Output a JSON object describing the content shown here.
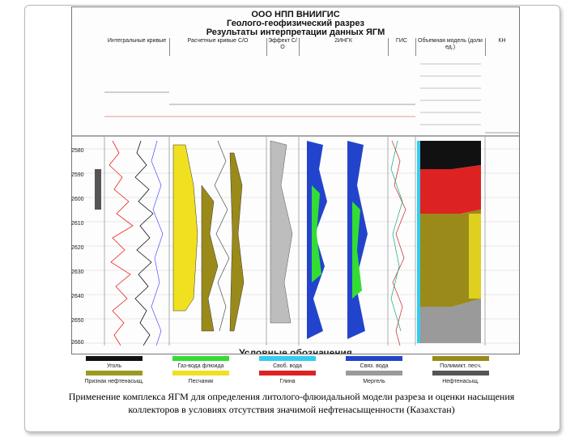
{
  "header": {
    "org": "ООО НПП ВНИИГИС",
    "title": "Геолого-геофизический разрез",
    "subtitle": "Результаты интерпретации данных ЯГМ"
  },
  "columns": {
    "integral": "Интегральные кривые",
    "calculated": "Расчетные кривые С/О",
    "effect": "Эффект С/О",
    "ingk": "2ИНГК",
    "gis": "ГИС",
    "volume": "Объемная модель (доли ед.)",
    "kn": "КН"
  },
  "depths": [
    "2580",
    "2590",
    "2600",
    "2610",
    "2620",
    "2630",
    "2640",
    "2650",
    "2660"
  ],
  "legend": {
    "title": "Условные обозначения",
    "items": [
      {
        "label": "Уголь",
        "color": "#111111"
      },
      {
        "label": "Газ-вода флюида",
        "color": "#33dd33"
      },
      {
        "label": "Своб. вода",
        "color": "#33ccee"
      },
      {
        "label": "Связ. вода",
        "color": "#2244cc"
      },
      {
        "label": "Полимикт. песч.",
        "color": "#9a8a1a"
      },
      {
        "label": "Признак нефтенасыщ.",
        "color": "#9a9a22"
      },
      {
        "label": "Песчаник",
        "color": "#f0e020"
      },
      {
        "label": "Глина",
        "color": "#dd2222"
      },
      {
        "label": "Мергель",
        "color": "#9a9a9a"
      },
      {
        "label": "Нефтенасыщ.",
        "color": "#555555"
      }
    ]
  },
  "caption": {
    "line1": "Применение комплекса ЯГМ для определения литолого-флюидальной модели разреза и оценки насыщения",
    "line2": "коллекторов в условиях отсутствия значимой нефтенасыщенности (Казахстан)"
  },
  "colors": {
    "sand": "#f0e020",
    "clay": "#dd2222",
    "water": "#2244cc",
    "gas": "#33dd33",
    "freewater": "#33ccee",
    "olive": "#9a8a1a"
  }
}
